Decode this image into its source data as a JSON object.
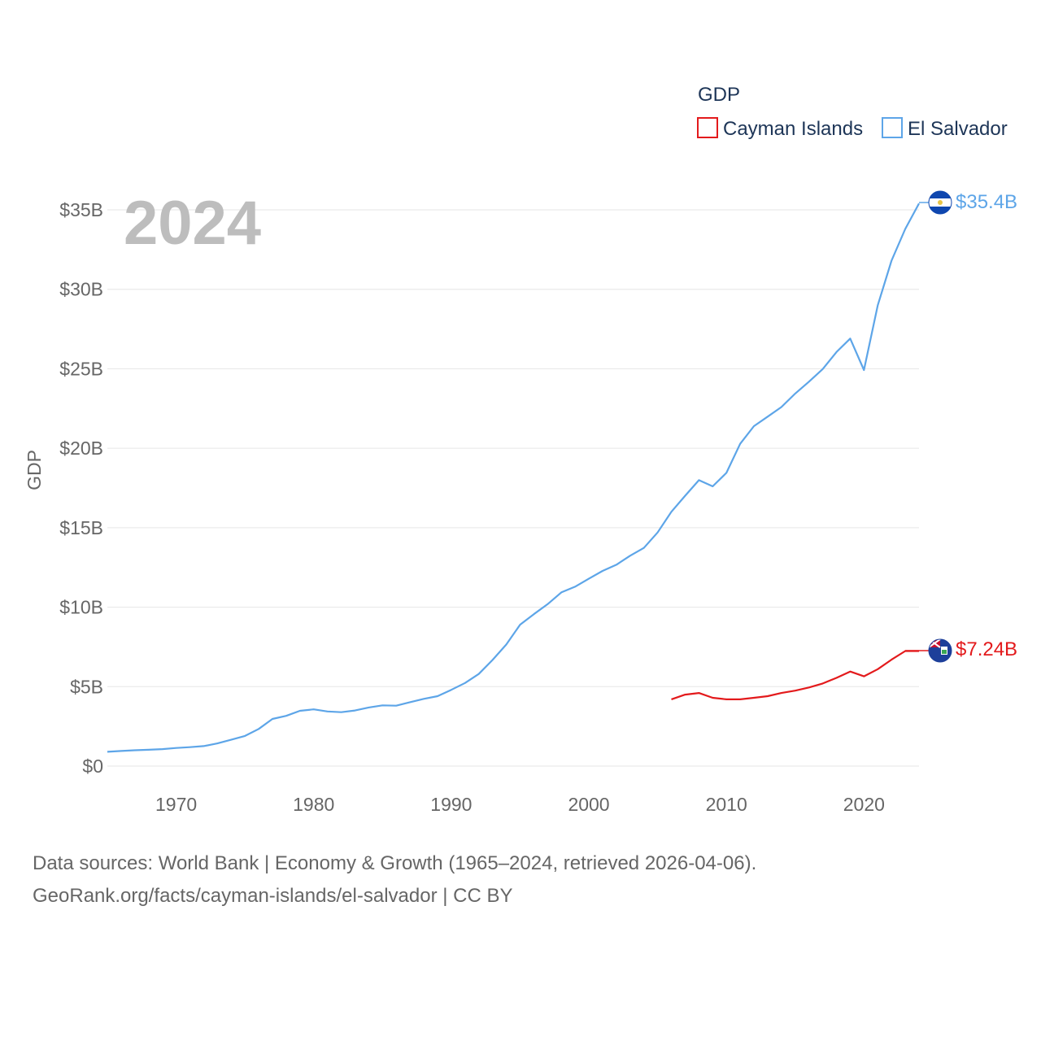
{
  "footer": {
    "line1": "Data sources: World Bank | Economy & Growth (1965–2024, retrieved 2026-04-06).",
    "line2": "GeoRank.org/facts/cayman-islands/el-salvador | CC BY"
  },
  "chart_data": {
    "type": "line",
    "title": "",
    "year_label": "2024",
    "ylabel": "GDP",
    "xlabel": "",
    "legend_title": "GDP",
    "legend_position": "top-right",
    "xlim": [
      1965,
      2024
    ],
    "ylim": [
      0,
      35
    ],
    "y_unit": "billion USD",
    "x_ticks": [
      1970,
      1980,
      1990,
      2000,
      2010,
      2020
    ],
    "x_tick_labels": [
      "1970",
      "1980",
      "1990",
      "2000",
      "2010",
      "2020"
    ],
    "y_ticks": [
      0,
      5,
      10,
      15,
      20,
      25,
      30,
      35
    ],
    "y_tick_labels": [
      "$0",
      "$5B",
      "$10B",
      "$15B",
      "$20B",
      "$25B",
      "$30B",
      "$35B"
    ],
    "grid": true,
    "series": [
      {
        "name": "Cayman Islands",
        "color": "#e31a1c",
        "end_label": "$7.24B",
        "flag_icon": "cayman-islands-flag-icon",
        "x": [
          2006,
          2007,
          2008,
          2009,
          2010,
          2011,
          2012,
          2013,
          2014,
          2015,
          2016,
          2017,
          2018,
          2019,
          2020,
          2021,
          2022,
          2023,
          2024
        ],
        "values": [
          4.2,
          4.5,
          4.6,
          4.3,
          4.2,
          4.2,
          4.3,
          4.4,
          4.6,
          4.75,
          4.95,
          5.2,
          5.55,
          5.95,
          5.65,
          6.1,
          6.7,
          7.24,
          7.24
        ]
      },
      {
        "name": "El Salvador",
        "color": "#5da5e8",
        "end_label": "$35.4B",
        "flag_icon": "el-salvador-flag-icon",
        "x": [
          1965,
          1966,
          1967,
          1968,
          1969,
          1970,
          1971,
          1972,
          1973,
          1974,
          1975,
          1976,
          1977,
          1978,
          1979,
          1980,
          1981,
          1982,
          1983,
          1984,
          1985,
          1986,
          1987,
          1988,
          1989,
          1990,
          1991,
          1992,
          1993,
          1994,
          1995,
          1996,
          1997,
          1998,
          1999,
          2000,
          2001,
          2002,
          2003,
          2004,
          2005,
          2006,
          2007,
          2008,
          2009,
          2010,
          2011,
          2012,
          2013,
          2014,
          2015,
          2016,
          2017,
          2018,
          2019,
          2020,
          2021,
          2022,
          2023,
          2024
        ],
        "values": [
          0.9,
          0.95,
          1.0,
          1.03,
          1.07,
          1.14,
          1.19,
          1.26,
          1.43,
          1.66,
          1.9,
          2.34,
          2.97,
          3.16,
          3.48,
          3.57,
          3.44,
          3.39,
          3.5,
          3.69,
          3.82,
          3.8,
          4.02,
          4.23,
          4.4,
          4.8,
          5.23,
          5.8,
          6.68,
          7.65,
          8.9,
          9.56,
          10.19,
          10.93,
          11.29,
          11.79,
          12.28,
          12.67,
          13.24,
          13.73,
          14.7,
          16.0,
          17.01,
          17.99,
          17.6,
          18.45,
          20.28,
          21.39,
          21.99,
          22.59,
          23.44,
          24.19,
          24.98,
          26.05,
          26.9,
          24.92,
          29.0,
          31.8,
          33.8,
          35.4
        ]
      }
    ]
  }
}
